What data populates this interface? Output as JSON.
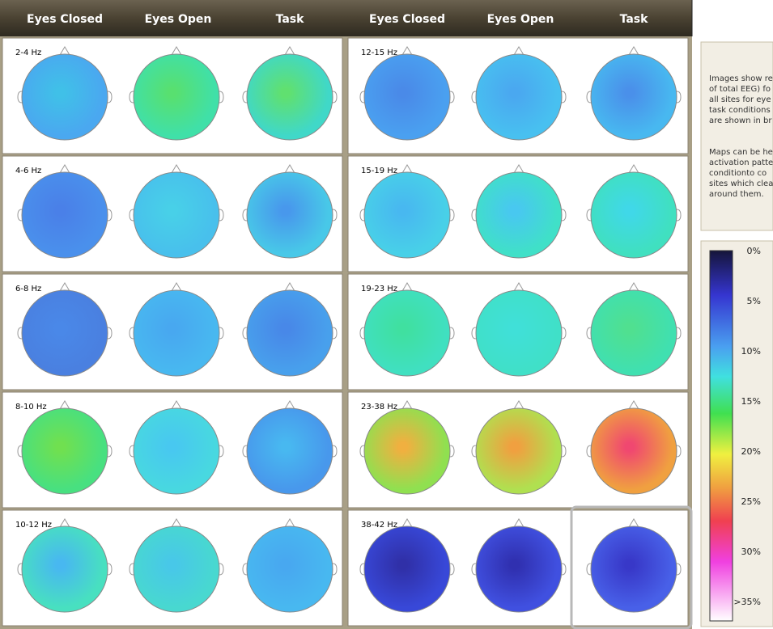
{
  "header": {
    "columns": [
      "Eyes Closed",
      "Eyes Open",
      "Task",
      "Eyes Closed",
      "Eyes Open",
      "Task"
    ]
  },
  "bands": {
    "left": [
      "2-4 Hz",
      "4-6 Hz",
      "6-8 Hz",
      "8-10 Hz",
      "10-12 Hz"
    ],
    "right": [
      "12-15 Hz",
      "15-19 Hz",
      "19-23 Hz",
      "23-38 Hz",
      "38-42 Hz"
    ]
  },
  "info": {
    "paragraph1": [
      "Images show re",
      "of total EEG) fo",
      "all sites for eye",
      "task conditions",
      "are shown in br"
    ],
    "paragraph2": [
      "Maps can be he",
      "activation patte",
      "conditionto co",
      "sites which clea",
      "around them."
    ]
  },
  "colorbar": {
    "labels": [
      "0%",
      "5%",
      "10%",
      "15%",
      "20%",
      "25%",
      "30%",
      ">35%"
    ]
  }
}
